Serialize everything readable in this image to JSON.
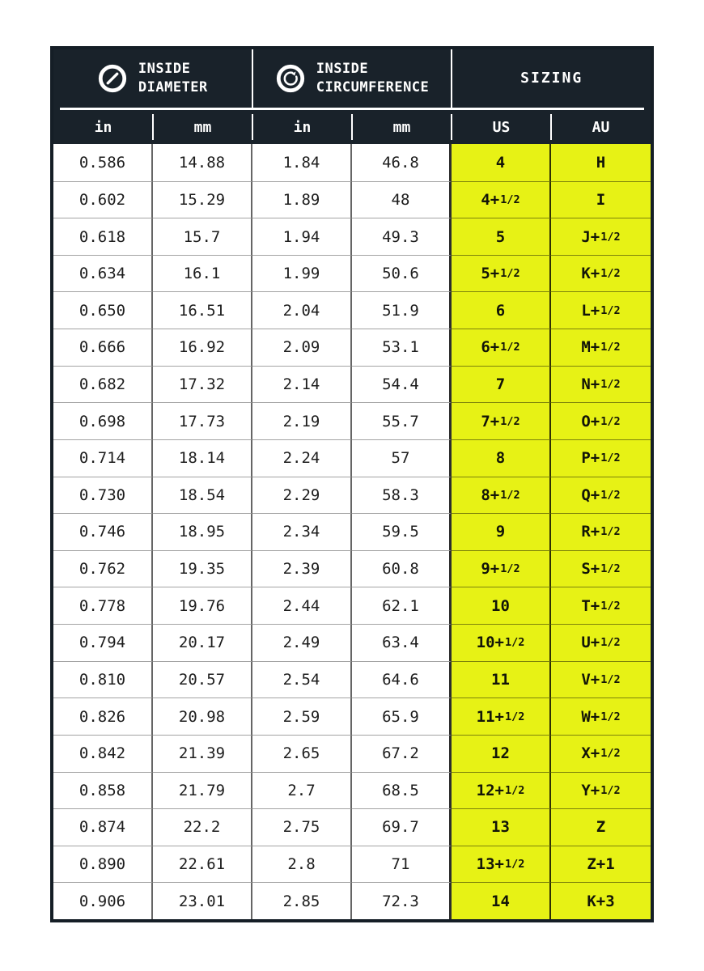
{
  "chart_data": {
    "type": "table",
    "header_groups": [
      {
        "label": "INSIDE\nDIAMETER",
        "icon": "diameter-icon"
      },
      {
        "label": "INSIDE\nCIRCUMFERENCE",
        "icon": "circumference-icon"
      },
      {
        "label": "SIZING",
        "icon": null
      }
    ],
    "columns": [
      "in",
      "mm",
      "in",
      "mm",
      "US",
      "AU"
    ],
    "highlighted_columns": [
      "US",
      "AU"
    ],
    "rows": [
      [
        "0.586",
        "14.88",
        "1.84",
        "46.8",
        "4",
        "H"
      ],
      [
        "0.602",
        "15.29",
        "1.89",
        "48",
        "4+1/2",
        "I"
      ],
      [
        "0.618",
        "15.7",
        "1.94",
        "49.3",
        "5",
        "J+1/2"
      ],
      [
        "0.634",
        "16.1",
        "1.99",
        "50.6",
        "5+1/2",
        "K+1/2"
      ],
      [
        "0.650",
        "16.51",
        "2.04",
        "51.9",
        "6",
        "L+1/2"
      ],
      [
        "0.666",
        "16.92",
        "2.09",
        "53.1",
        "6+1/2",
        "M+1/2"
      ],
      [
        "0.682",
        "17.32",
        "2.14",
        "54.4",
        "7",
        "N+1/2"
      ],
      [
        "0.698",
        "17.73",
        "2.19",
        "55.7",
        "7+1/2",
        "O+1/2"
      ],
      [
        "0.714",
        "18.14",
        "2.24",
        "57",
        "8",
        "P+1/2"
      ],
      [
        "0.730",
        "18.54",
        "2.29",
        "58.3",
        "8+1/2",
        "Q+1/2"
      ],
      [
        "0.746",
        "18.95",
        "2.34",
        "59.5",
        "9",
        "R+1/2"
      ],
      [
        "0.762",
        "19.35",
        "2.39",
        "60.8",
        "9+1/2",
        "S+1/2"
      ],
      [
        "0.778",
        "19.76",
        "2.44",
        "62.1",
        "10",
        "T+1/2"
      ],
      [
        "0.794",
        "20.17",
        "2.49",
        "63.4",
        "10+1/2",
        "U+1/2"
      ],
      [
        "0.810",
        "20.57",
        "2.54",
        "64.6",
        "11",
        "V+1/2"
      ],
      [
        "0.826",
        "20.98",
        "2.59",
        "65.9",
        "11+1/2",
        "W+1/2"
      ],
      [
        "0.842",
        "21.39",
        "2.65",
        "67.2",
        "12",
        "X+1/2"
      ],
      [
        "0.858",
        "21.79",
        "2.7",
        "68.5",
        "12+1/2",
        "Y+1/2"
      ],
      [
        "0.874",
        "22.2",
        "2.75",
        "69.7",
        "13",
        "Z"
      ],
      [
        "0.890",
        "22.61",
        "2.8",
        "71",
        "13+1/2",
        "Z+1"
      ],
      [
        "0.906",
        "23.01",
        "2.85",
        "72.3",
        "14",
        "K+3"
      ]
    ]
  },
  "colors": {
    "header_bg": "#19222a",
    "header_text": "#ffffff",
    "highlight_yellow": "#e7f215",
    "cell_text": "#1d1d1d",
    "page_bg": "#ffffff",
    "frame_border": "#151e26"
  }
}
